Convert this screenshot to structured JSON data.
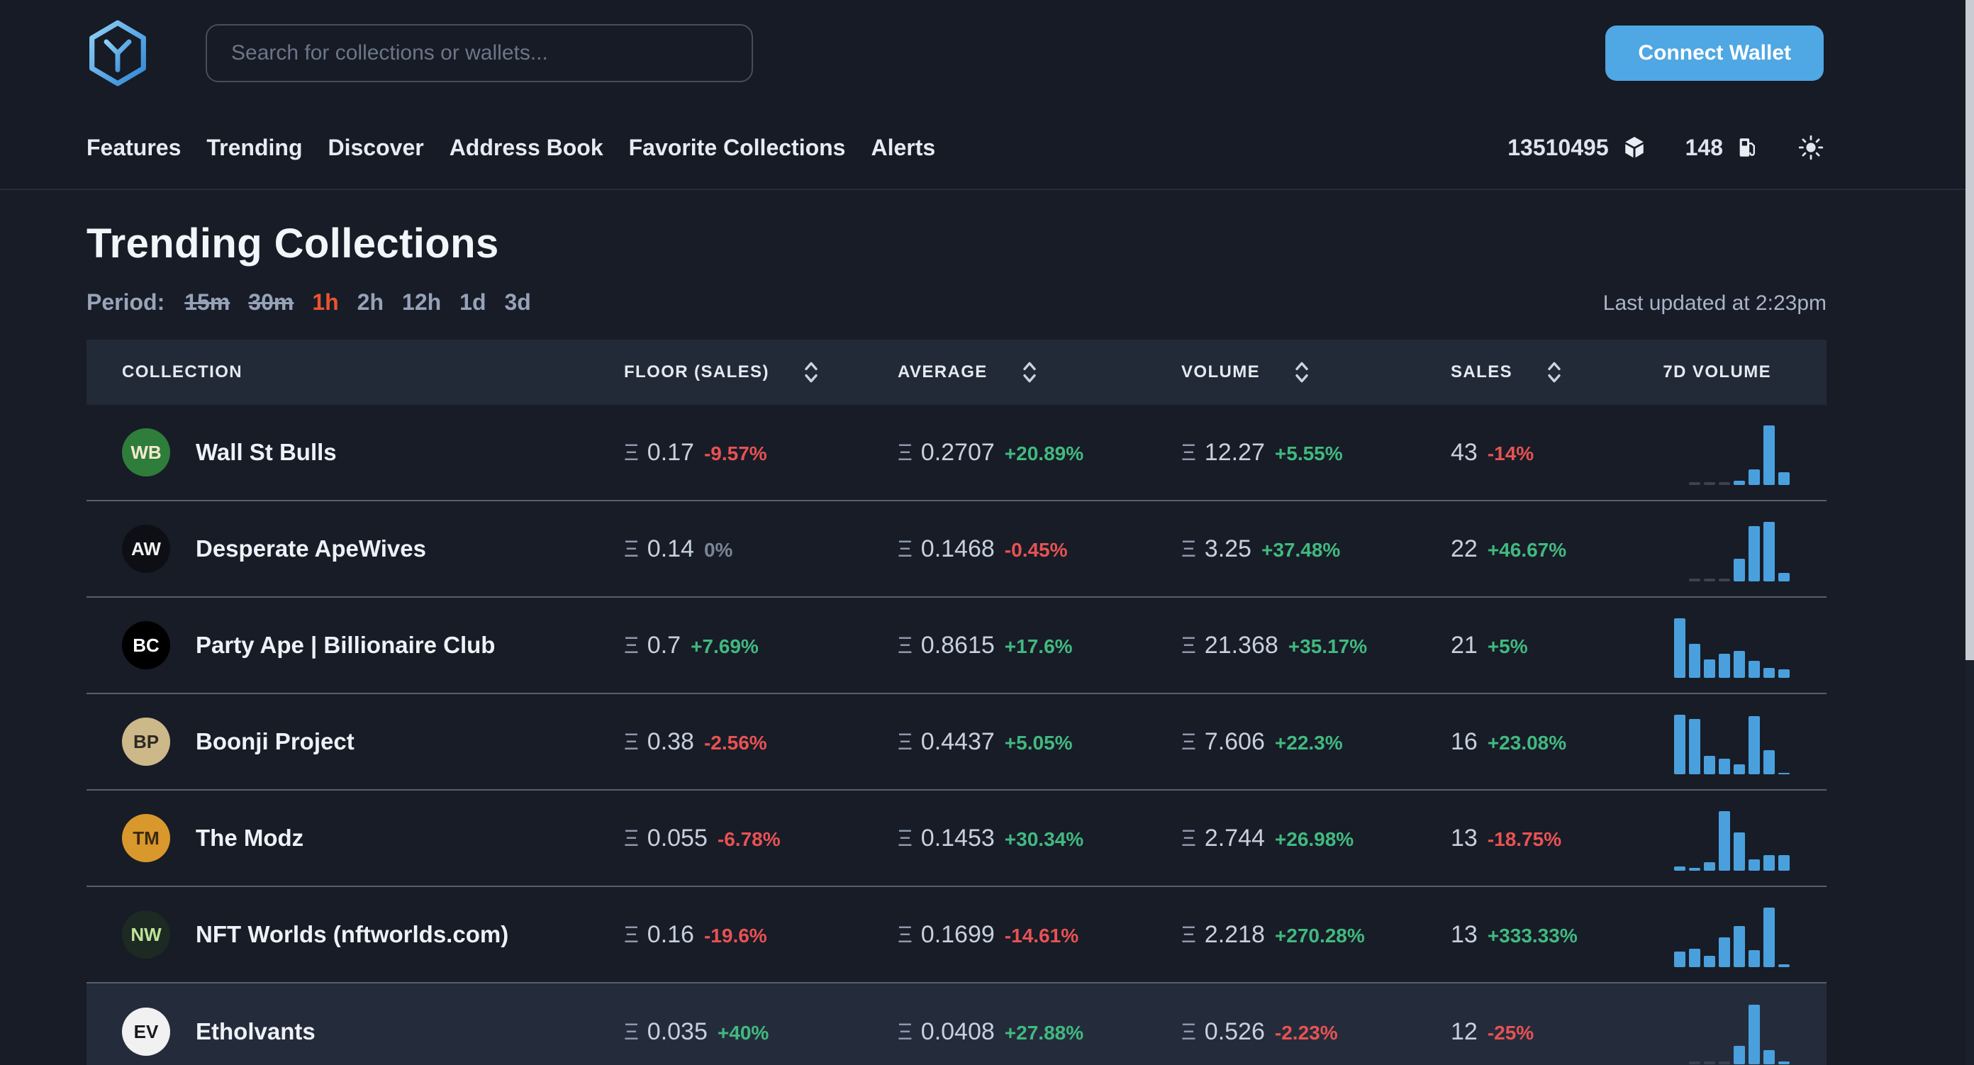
{
  "header": {
    "search_placeholder": "Search for collections or wallets...",
    "connect_wallet_label": "Connect Wallet",
    "nav_items": [
      "Features",
      "Trending",
      "Discover",
      "Address Book",
      "Favorite Collections",
      "Alerts"
    ],
    "block_number": "13510495",
    "gas_price": "148"
  },
  "page": {
    "title": "Trending Collections",
    "period_label": "Period:",
    "periods": [
      {
        "label": "15m",
        "state": "disabled"
      },
      {
        "label": "30m",
        "state": "disabled"
      },
      {
        "label": "1h",
        "state": "selected"
      },
      {
        "label": "2h",
        "state": "normal"
      },
      {
        "label": "12h",
        "state": "normal"
      },
      {
        "label": "1d",
        "state": "normal"
      },
      {
        "label": "3d",
        "state": "normal"
      }
    ],
    "last_updated": "Last updated at 2:23pm"
  },
  "table": {
    "eth_symbol": "Ξ",
    "columns": [
      {
        "label": "COLLECTION",
        "sortable": false
      },
      {
        "label": "FLOOR (SALES)",
        "sortable": true
      },
      {
        "label": "AVERAGE",
        "sortable": true
      },
      {
        "label": "VOLUME",
        "sortable": true
      },
      {
        "label": "SALES",
        "sortable": true
      },
      {
        "label": "7D VOLUME",
        "sortable": false
      }
    ],
    "rows": [
      {
        "name": "Wall St Bulls",
        "avatar": {
          "initials": "WB",
          "bg": "#2f7d3a",
          "fg": "#f3e9cf"
        },
        "floor": {
          "value": "0.17",
          "change": "-9.57%"
        },
        "average": {
          "value": "0.2707",
          "change": "+20.89%"
        },
        "volume": {
          "value": "12.27",
          "change": "+5.55%"
        },
        "sales": {
          "value": "43",
          "change": "-14%"
        },
        "chart": [
          2,
          2,
          2,
          8,
          26,
          100,
          22
        ],
        "highlighted": false
      },
      {
        "name": "Desperate ApeWives",
        "avatar": {
          "initials": "AW",
          "bg": "#0d0f14",
          "fg": "#f2f2f2"
        },
        "floor": {
          "value": "0.14",
          "change": "0%"
        },
        "average": {
          "value": "0.1468",
          "change": "-0.45%"
        },
        "volume": {
          "value": "3.25",
          "change": "+37.48%"
        },
        "sales": {
          "value": "22",
          "change": "+46.67%"
        },
        "chart": [
          2,
          2,
          2,
          38,
          92,
          100,
          15
        ],
        "highlighted": false
      },
      {
        "name": "Party Ape | Billionaire Club",
        "avatar": {
          "initials": "BC",
          "bg": "#000000",
          "fg": "#ffffff"
        },
        "floor": {
          "value": "0.7",
          "change": "+7.69%"
        },
        "average": {
          "value": "0.8615",
          "change": "+17.6%"
        },
        "volume": {
          "value": "21.368",
          "change": "+35.17%"
        },
        "sales": {
          "value": "21",
          "change": "+5%"
        },
        "chart": [
          100,
          58,
          30,
          40,
          46,
          28,
          17,
          14
        ],
        "highlighted": false
      },
      {
        "name": "Boonji Project",
        "avatar": {
          "initials": "BP",
          "bg": "#cdb88a",
          "fg": "#2e2a24"
        },
        "floor": {
          "value": "0.38",
          "change": "-2.56%"
        },
        "average": {
          "value": "0.4437",
          "change": "+5.05%"
        },
        "volume": {
          "value": "7.606",
          "change": "+22.3%"
        },
        "sales": {
          "value": "16",
          "change": "+23.08%"
        },
        "chart": [
          100,
          92,
          30,
          26,
          16,
          98,
          40,
          3
        ],
        "highlighted": false
      },
      {
        "name": "The Modz",
        "avatar": {
          "initials": "TM",
          "bg": "#d9982c",
          "fg": "#3c2a12"
        },
        "floor": {
          "value": "0.055",
          "change": "-6.78%"
        },
        "average": {
          "value": "0.1453",
          "change": "+30.34%"
        },
        "volume": {
          "value": "2.744",
          "change": "+26.98%"
        },
        "sales": {
          "value": "13",
          "change": "-18.75%"
        },
        "chart": [
          8,
          5,
          14,
          100,
          64,
          20,
          26,
          26
        ],
        "highlighted": false
      },
      {
        "name": "NFT Worlds (nftworlds.com)",
        "avatar": {
          "initials": "NW",
          "bg": "#1d2a23",
          "fg": "#bfe39a"
        },
        "floor": {
          "value": "0.16",
          "change": "-19.6%"
        },
        "average": {
          "value": "0.1699",
          "change": "-14.61%"
        },
        "volume": {
          "value": "2.218",
          "change": "+270.28%"
        },
        "sales": {
          "value": "13",
          "change": "+333.33%"
        },
        "chart": [
          26,
          32,
          20,
          50,
          70,
          28,
          100,
          5
        ],
        "highlighted": false
      },
      {
        "name": "Etholvants",
        "avatar": {
          "initials": "EV",
          "bg": "#f1f1f1",
          "fg": "#17181c"
        },
        "floor": {
          "value": "0.035",
          "change": "+40%"
        },
        "average": {
          "value": "0.0408",
          "change": "+27.88%"
        },
        "volume": {
          "value": "0.526",
          "change": "-2.23%"
        },
        "sales": {
          "value": "12",
          "change": "-25%"
        },
        "chart": [
          2,
          2,
          2,
          30,
          100,
          24,
          4
        ],
        "highlighted": true
      }
    ]
  },
  "colors": {
    "accent_blue": "#4fa7e3",
    "chart_blue": "#4aa0dd",
    "positive": "#41b97f",
    "negative": "#e85252",
    "neutral": "#7b8595",
    "period_selected": "#ea5430"
  }
}
